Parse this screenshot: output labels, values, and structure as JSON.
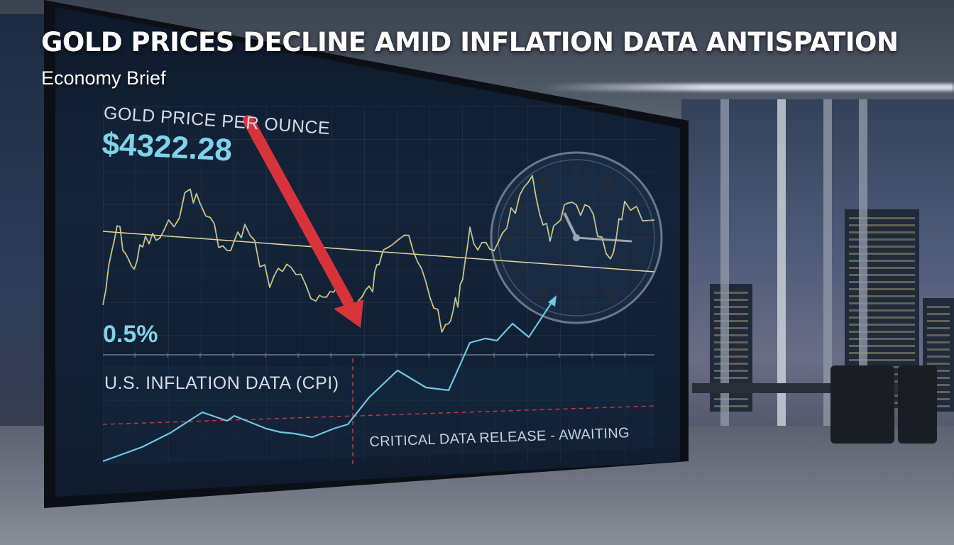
{
  "headline": "GOLD PRICES DECLINE AMID INFLATION DATA ANTISPATION",
  "subheadline": "Economy Brief",
  "screen": {
    "gold_label": "GOLD PRICE PER OUNCE",
    "gold_price": "$4322.28",
    "percent": "0.5%",
    "cpi_label": "U.S. INFLATION DATA (CPI)",
    "critical_label": "CRITICAL DATA RELEASE - AWAITING"
  },
  "colors": {
    "gold_line": "#e6c46a",
    "cyan_line": "#6fc7e3",
    "red_arrow": "#d8333a",
    "dashed_red": "#c0393f"
  },
  "icons": [
    "down-arrow-icon",
    "clock-icon"
  ]
}
